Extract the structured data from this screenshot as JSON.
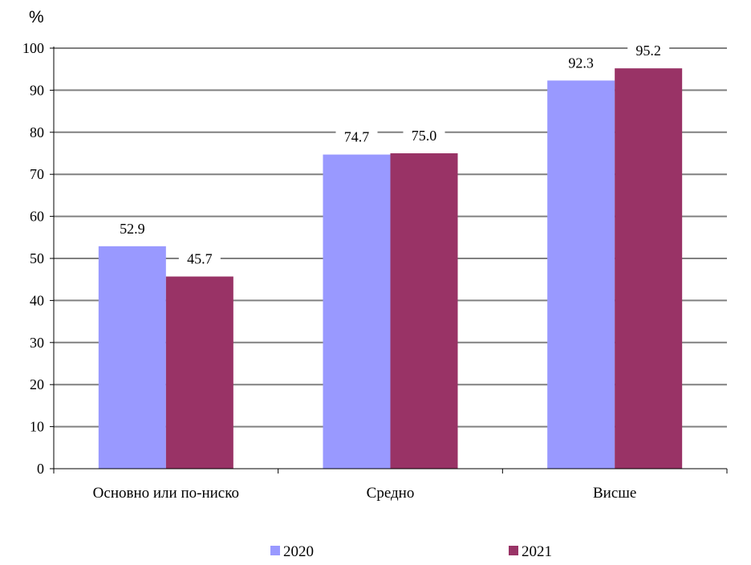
{
  "chart_data": {
    "type": "bar",
    "unit_label": "%",
    "categories": [
      "Основно или по-ниско",
      "Средно",
      "Висше"
    ],
    "series": [
      {
        "name": "2020",
        "values": [
          52.9,
          74.7,
          92.3
        ],
        "labels": [
          "52.9",
          "74.7",
          "92.3"
        ],
        "color": "#9999ff"
      },
      {
        "name": "2021",
        "values": [
          45.7,
          75.0,
          95.2
        ],
        "labels": [
          "45.7",
          "75.0",
          "95.2"
        ],
        "color": "#993366"
      }
    ],
    "ylim": [
      0,
      100
    ],
    "yticks": [
      "0",
      "10",
      "20",
      "30",
      "40",
      "50",
      "60",
      "70",
      "80",
      "90",
      "100"
    ],
    "grid": true,
    "gridline_color": "#808080",
    "legend_position": "bottom"
  }
}
